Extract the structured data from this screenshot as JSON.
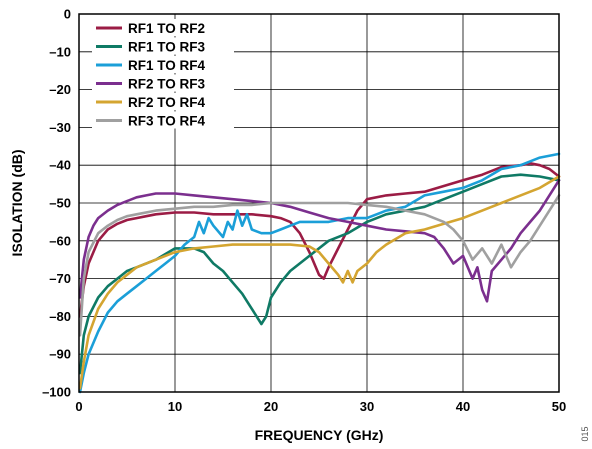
{
  "figure_id": "015",
  "chart_data": {
    "type": "line",
    "title": "",
    "xlabel": "FREQUENCY (GHz)",
    "ylabel": "ISOLATION (dB)",
    "xlim": [
      0,
      50
    ],
    "ylim": [
      -100,
      0
    ],
    "xticks": [
      0,
      10,
      20,
      30,
      40,
      50
    ],
    "yticks": [
      0,
      -10,
      -20,
      -30,
      -40,
      -50,
      -60,
      -70,
      -80,
      -90,
      -100
    ],
    "xtick_labels": [
      "0",
      "10",
      "20",
      "30",
      "40",
      "50"
    ],
    "ytick_labels": [
      "0",
      "–10",
      "–20",
      "–30",
      "–40",
      "–50",
      "–60",
      "–70",
      "–80",
      "–90",
      "–100"
    ],
    "grid": true,
    "legend_position": "top-left",
    "series": [
      {
        "name": "RF1 TO RF2",
        "color": "#9b1c45",
        "x": [
          0.1,
          0.5,
          1,
          2,
          3,
          4,
          5,
          6,
          7,
          8,
          10,
          12,
          14,
          16,
          18,
          20,
          21,
          22,
          23,
          24,
          25,
          25.5,
          26,
          27,
          28,
          29,
          30,
          32,
          34,
          36,
          38,
          40,
          42,
          44,
          46,
          47,
          48,
          49,
          50
        ],
        "y": [
          -80,
          -72,
          -66,
          -60,
          -57,
          -55.5,
          -54.5,
          -54,
          -53.5,
          -53,
          -52.5,
          -52.5,
          -53,
          -53,
          -53,
          -53.5,
          -54,
          -55,
          -58,
          -63,
          -69,
          -70,
          -67,
          -62,
          -57,
          -52,
          -49,
          -48,
          -47.5,
          -47,
          -45.5,
          -44,
          -42.5,
          -40.5,
          -40,
          -39.5,
          -40,
          -41,
          -43
        ]
      },
      {
        "name": "RF1 TO RF3",
        "color": "#0f7a65",
        "x": [
          0.1,
          0.5,
          1,
          2,
          3,
          4,
          5,
          6,
          8,
          10,
          12,
          13,
          14,
          15,
          16,
          17,
          17.5,
          18,
          18.5,
          19,
          19.5,
          20,
          21,
          22,
          24,
          26,
          28,
          30,
          32,
          34,
          36,
          38,
          40,
          42,
          44,
          46,
          48,
          50
        ],
        "y": [
          -95,
          -85,
          -80,
          -75,
          -72,
          -70,
          -68,
          -67,
          -65,
          -62,
          -62,
          -63,
          -66,
          -68,
          -71,
          -74,
          -76,
          -78,
          -80,
          -82,
          -80,
          -75,
          -71,
          -68,
          -64,
          -60,
          -58,
          -55,
          -53,
          -52,
          -51,
          -49,
          -47,
          -45,
          -43,
          -42.5,
          -43,
          -44
        ]
      },
      {
        "name": "RF1 TO RF4",
        "color": "#1b9fd8",
        "x": [
          0.1,
          0.5,
          1,
          2,
          3,
          4,
          5,
          6,
          7,
          8,
          9,
          10,
          11,
          12,
          12.5,
          13,
          13.5,
          14,
          15,
          15.5,
          16,
          16.5,
          17,
          17.5,
          18,
          19,
          20,
          21,
          22,
          23,
          24,
          26,
          28,
          30,
          32,
          34,
          36,
          38,
          40,
          42,
          44,
          46,
          48,
          50
        ],
        "y": [
          -100,
          -95,
          -90,
          -84,
          -79,
          -76,
          -74,
          -72,
          -70,
          -68,
          -66,
          -64,
          -61,
          -59,
          -55,
          -58,
          -54,
          -56,
          -59,
          -55,
          -57,
          -52,
          -56,
          -53,
          -57,
          -58,
          -58,
          -57,
          -56,
          -55,
          -55,
          -55,
          -54,
          -54,
          -52,
          -51,
          -48,
          -47,
          -46,
          -44,
          -41,
          -40,
          -38,
          -37
        ]
      },
      {
        "name": "RF2 TO RF3",
        "color": "#7b2f8e",
        "x": [
          0.1,
          0.5,
          1,
          1.5,
          2,
          3,
          4,
          5,
          6,
          7,
          8,
          9,
          10,
          12,
          14,
          16,
          18,
          20,
          22,
          24,
          26,
          28,
          30,
          32,
          34,
          36,
          37,
          38,
          39,
          40,
          41,
          41.5,
          42,
          42.5,
          43,
          44,
          45,
          46,
          47,
          48,
          49,
          50
        ],
        "y": [
          -75,
          -65,
          -59,
          -56,
          -54,
          -52,
          -50.5,
          -49.5,
          -48.5,
          -48,
          -47.5,
          -47.5,
          -47.5,
          -48,
          -48.5,
          -49,
          -49.5,
          -50,
          -51,
          -52.5,
          -54,
          -55,
          -56,
          -57,
          -57.5,
          -58,
          -59,
          -62,
          -66,
          -64,
          -70,
          -67,
          -73,
          -76,
          -68,
          -65,
          -62,
          -58,
          -55,
          -52,
          -48,
          -44
        ]
      },
      {
        "name": "RF2 TO RF4",
        "color": "#d4a531",
        "x": [
          0.1,
          0.5,
          1,
          2,
          3,
          4,
          5,
          6,
          8,
          10,
          12,
          14,
          16,
          18,
          20,
          22,
          24,
          25,
          26,
          27,
          27.5,
          28,
          28.5,
          29,
          30,
          31,
          32,
          34,
          36,
          38,
          40,
          42,
          44,
          46,
          48,
          50
        ],
        "y": [
          -99,
          -92,
          -85,
          -78,
          -74,
          -71,
          -69,
          -67,
          -65,
          -63,
          -62,
          -61.5,
          -61,
          -61,
          -61,
          -61,
          -61.5,
          -63,
          -66,
          -69,
          -71,
          -68,
          -71,
          -68,
          -66,
          -63,
          -61,
          -58,
          -57,
          -55.5,
          -54,
          -52,
          -50,
          -48,
          -46,
          -43
        ]
      },
      {
        "name": "RF3 TO RF4",
        "color": "#a0a0a0",
        "x": [
          0.1,
          0.5,
          1,
          2,
          3,
          4,
          5,
          6,
          8,
          10,
          12,
          14,
          16,
          18,
          20,
          22,
          24,
          26,
          28,
          30,
          32,
          34,
          36,
          38,
          39,
          40,
          41,
          42,
          43,
          44,
          45,
          46,
          47,
          48,
          49,
          50
        ],
        "y": [
          -85,
          -70,
          -63,
          -58,
          -56,
          -54.5,
          -53.5,
          -53,
          -52,
          -51.5,
          -51,
          -51,
          -50.5,
          -50.5,
          -50,
          -50,
          -50,
          -50,
          -50,
          -50.5,
          -51,
          -52,
          -53,
          -55,
          -57,
          -60,
          -65,
          -62,
          -66,
          -61,
          -67,
          -63,
          -60,
          -56,
          -52,
          -48
        ]
      }
    ]
  }
}
